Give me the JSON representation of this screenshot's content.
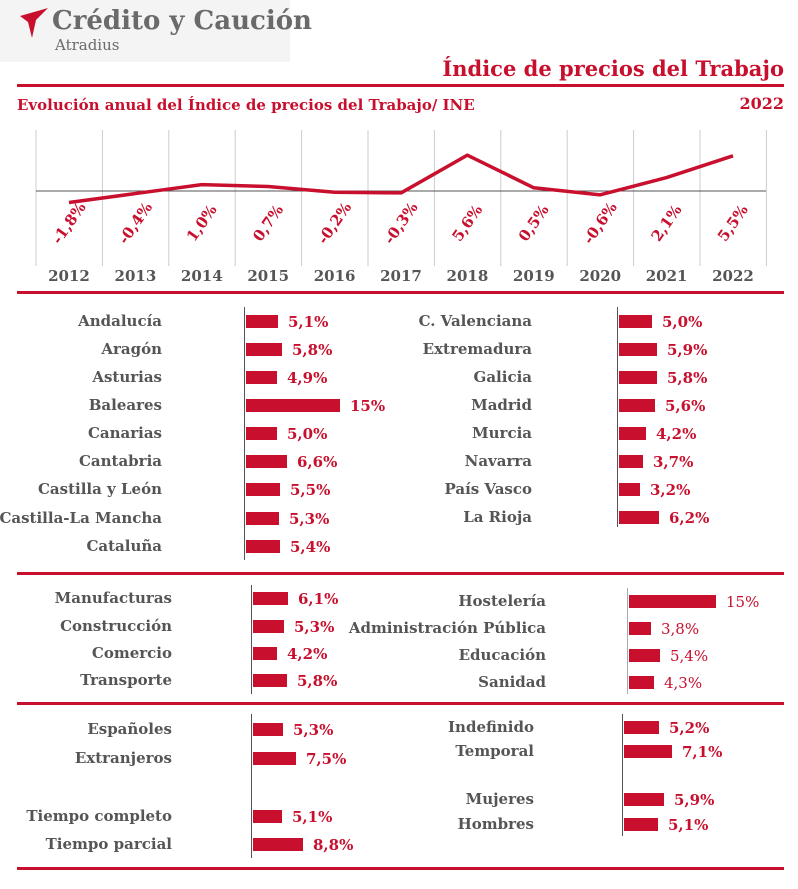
{
  "header": {
    "brand_name": "Crédito y Caución",
    "brand_sub": "Atradius",
    "page_title": "Índice de precios del Trabajo",
    "chart_title": "Evolución anual del Índice de precios del Trabajo/ INE",
    "year": "2022"
  },
  "colors": {
    "accent": "#c8102e",
    "text": "#555555",
    "grid": "#cccccc"
  },
  "chart_data": [
    {
      "type": "line",
      "title": "Evolución anual del Índice de precios del Trabajo/ INE",
      "x": [
        "2012",
        "2013",
        "2014",
        "2015",
        "2016",
        "2017",
        "2018",
        "2019",
        "2020",
        "2021",
        "2022"
      ],
      "values": [
        -1.8,
        -0.4,
        1.0,
        0.7,
        -0.2,
        -0.3,
        5.6,
        0.5,
        -0.6,
        2.1,
        5.5
      ],
      "labels": [
        "-1,8%",
        "-0,4%",
        "1,0%",
        "0,7%",
        "-0,2%",
        "-0,3%",
        "5,6%",
        "0,5%",
        "-0,6%",
        "2,1%",
        "5,5%"
      ]
    },
    {
      "type": "bar",
      "orientation": "horizontal",
      "categories": [
        "Andalucía",
        "Aragón",
        "Asturias",
        "Baleares",
        "Canarias",
        "Cantabria",
        "Castilla y León",
        "Castilla-La Mancha",
        "Cataluña"
      ],
      "values": [
        5.1,
        5.8,
        4.9,
        15,
        5.0,
        6.6,
        5.5,
        5.3,
        5.4
      ],
      "labels": [
        "5,1%",
        "5,8%",
        "4,9%",
        "15%",
        "5,0%",
        "6,6%",
        "5,5%",
        "5,3%",
        "5,4%"
      ]
    },
    {
      "type": "bar",
      "orientation": "horizontal",
      "categories": [
        "C. Valenciana",
        "Extremadura",
        "Galicia",
        "Madrid",
        "Murcia",
        "Navarra",
        "País Vasco",
        "La Rioja"
      ],
      "values": [
        5.0,
        5.9,
        5.8,
        5.6,
        4.2,
        3.7,
        3.2,
        6.2
      ],
      "labels": [
        "5,0%",
        "5,9%",
        "5,8%",
        "5,6%",
        "4,2%",
        "3,7%",
        "3,2%",
        "6,2%"
      ]
    },
    {
      "type": "bar",
      "orientation": "horizontal",
      "categories": [
        "Manufacturas",
        "Construcción",
        "Comercio",
        "Transporte"
      ],
      "values": [
        6.1,
        5.3,
        4.2,
        5.8
      ],
      "labels": [
        "6,1%",
        "5,3%",
        "4,2%",
        "5,8%"
      ]
    },
    {
      "type": "bar",
      "orientation": "horizontal",
      "categories": [
        "Hostelería",
        "Administración Pública",
        "Educación",
        "Sanidad"
      ],
      "values": [
        15,
        3.8,
        5.4,
        4.3
      ],
      "labels": [
        "15%",
        "3,8%",
        "5,4%",
        "4,3%"
      ]
    },
    {
      "type": "bar",
      "orientation": "horizontal",
      "categories": [
        "Españoles",
        "Extranjeros",
        "Tiempo completo",
        "Tiempo parcial"
      ],
      "values": [
        5.3,
        7.5,
        5.1,
        8.8
      ],
      "labels": [
        "5,3%",
        "7,5%",
        "5,1%",
        "8,8%"
      ]
    },
    {
      "type": "bar",
      "orientation": "horizontal",
      "categories": [
        "Indefinido",
        "Temporal",
        "Mujeres",
        "Hombres"
      ],
      "values": [
        5.2,
        7.1,
        5.9,
        5.1
      ],
      "labels": [
        "5,2%",
        "7,1%",
        "5,9%",
        "5,1%"
      ]
    }
  ]
}
